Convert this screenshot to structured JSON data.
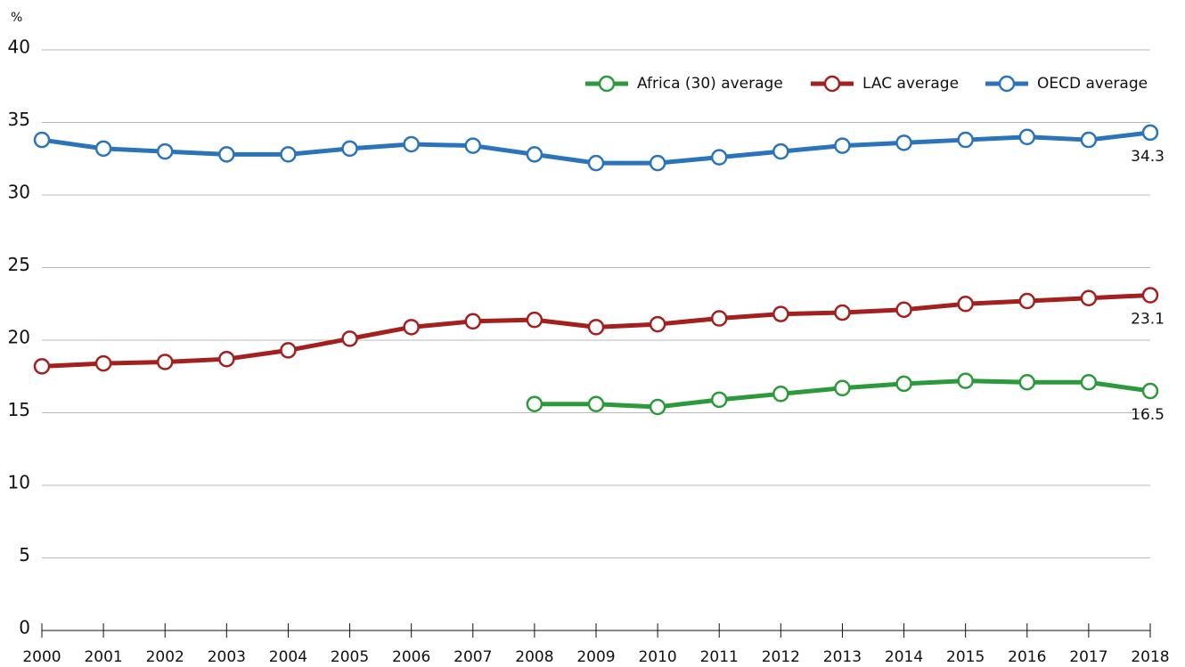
{
  "chart_data": {
    "type": "line",
    "y_label": "%",
    "categories": [
      "2000",
      "2001",
      "2002",
      "2003",
      "2004",
      "2005",
      "2006",
      "2007",
      "2008",
      "2009",
      "2010",
      "2011",
      "2012",
      "2013",
      "2014",
      "2015",
      "2016",
      "2017",
      "2018"
    ],
    "series": [
      {
        "name": "Africa (30) average",
        "color": "#2a9a3a",
        "values": [
          null,
          null,
          null,
          null,
          null,
          null,
          null,
          null,
          15.6,
          15.6,
          15.4,
          15.9,
          16.3,
          16.7,
          17.0,
          17.2,
          17.1,
          17.1,
          16.5
        ]
      },
      {
        "name": "LAC average",
        "color": "#a3201f",
        "values": [
          18.2,
          18.4,
          18.5,
          18.7,
          19.3,
          20.1,
          20.9,
          21.3,
          21.4,
          20.9,
          21.1,
          21.5,
          21.8,
          21.9,
          22.1,
          22.5,
          22.7,
          22.9,
          23.1
        ]
      },
      {
        "name": "OECD average",
        "color": "#2b74bc",
        "values": [
          33.8,
          33.2,
          33.0,
          32.8,
          32.8,
          33.2,
          33.5,
          33.4,
          32.8,
          32.2,
          32.2,
          32.6,
          33.0,
          33.4,
          33.6,
          33.8,
          34.0,
          33.8,
          34.3
        ]
      }
    ],
    "ylim": [
      0,
      40
    ],
    "yticks": [
      0,
      5,
      10,
      15,
      20,
      25,
      30,
      35,
      40
    ],
    "grid": true,
    "legend": "top-right"
  }
}
